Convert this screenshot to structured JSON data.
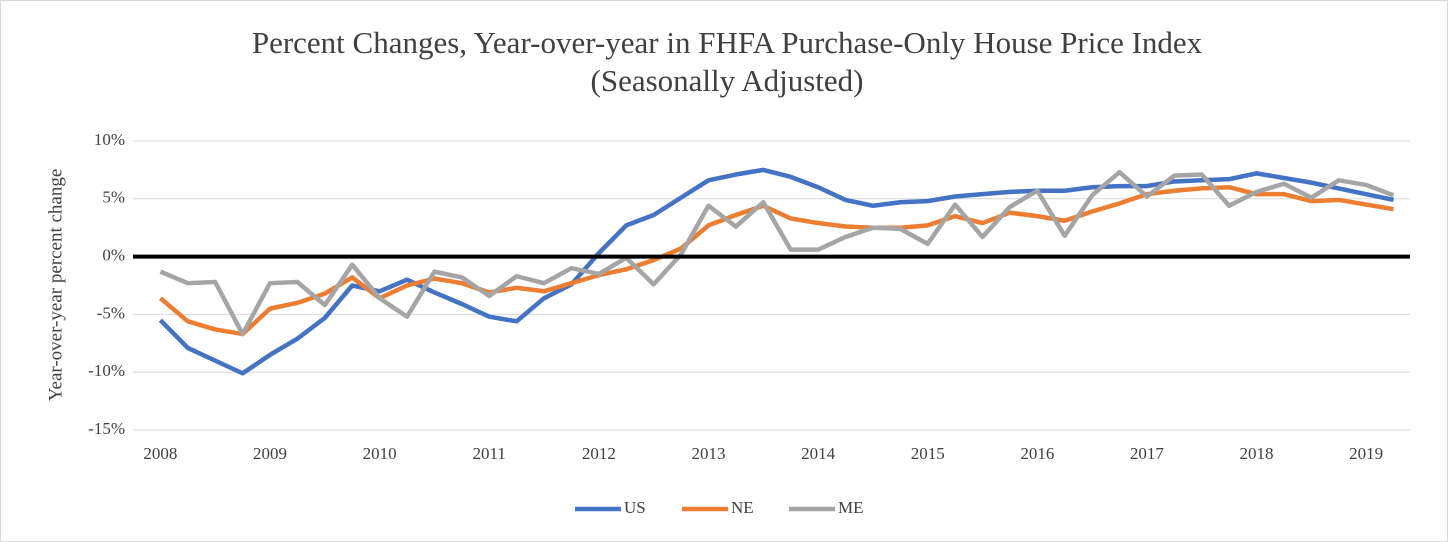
{
  "chart_data": {
    "type": "line",
    "title": "Percent Changes, Year-over-year  in FHFA Purchase-Only House Price Index",
    "subtitle": "(Seasonally Adjusted)",
    "y_label": "Year-over-year percent change",
    "x": [
      2008,
      2008.25,
      2008.5,
      2008.75,
      2009,
      2009.25,
      2009.5,
      2009.75,
      2010,
      2010.25,
      2010.5,
      2010.75,
      2011,
      2011.25,
      2011.5,
      2011.75,
      2012,
      2012.25,
      2012.5,
      2012.75,
      2013,
      2013.25,
      2013.5,
      2013.75,
      2014,
      2014.25,
      2014.5,
      2014.75,
      2015,
      2015.25,
      2015.5,
      2015.75,
      2016,
      2016.25,
      2016.5,
      2016.75,
      2017,
      2017.25,
      2017.5,
      2017.75,
      2018,
      2018.25,
      2018.5,
      2018.75,
      2019,
      2019.25
    ],
    "series": [
      {
        "name": "US",
        "color": "#4472c4",
        "values": [
          -5.5,
          -7.9,
          -9.0,
          -10.1,
          -8.5,
          -7.1,
          -5.3,
          -2.5,
          -3.0,
          -2.0,
          -3.1,
          -4.1,
          -5.2,
          -5.6,
          -3.6,
          -2.4,
          0.3,
          2.7,
          3.6,
          5.1,
          6.6,
          7.1,
          7.5,
          6.9,
          6.0,
          4.9,
          4.4,
          4.7,
          4.8,
          5.2,
          5.4,
          5.6,
          5.7,
          5.7,
          6.0,
          6.1,
          6.1,
          6.5,
          6.6,
          6.7,
          7.2,
          6.8,
          6.4,
          5.9,
          5.4,
          4.9
        ]
      },
      {
        "name": "NE",
        "color": "#ed7d31",
        "values": [
          -3.6,
          -5.6,
          -6.3,
          -6.7,
          -4.5,
          -4.0,
          -3.2,
          -1.8,
          -3.6,
          -2.5,
          -1.9,
          -2.3,
          -3.1,
          -2.7,
          -3.0,
          -2.3,
          -1.6,
          -1.1,
          -0.3,
          0.7,
          2.7,
          3.6,
          4.4,
          3.3,
          2.9,
          2.6,
          2.5,
          2.5,
          2.7,
          3.5,
          2.9,
          3.8,
          3.5,
          3.1,
          3.9,
          4.6,
          5.4,
          5.7,
          5.9,
          6.0,
          5.4,
          5.4,
          4.8,
          4.9,
          4.5,
          4.1
        ]
      },
      {
        "name": "ME",
        "color": "#a5a5a5",
        "values": [
          -1.3,
          -2.3,
          -2.2,
          -6.7,
          -2.3,
          -2.2,
          -4.2,
          -0.7,
          -3.6,
          -5.2,
          -1.3,
          -1.8,
          -3.4,
          -1.7,
          -2.3,
          -1.0,
          -1.5,
          -0.1,
          -2.4,
          0.2,
          4.4,
          2.6,
          4.7,
          0.6,
          0.6,
          1.7,
          2.5,
          2.4,
          1.1,
          4.5,
          1.7,
          4.3,
          5.7,
          1.8,
          5.3,
          7.3,
          5.2,
          7.0,
          7.1,
          4.4,
          5.6,
          6.3,
          5.1,
          6.6,
          6.2,
          5.3
        ]
      }
    ],
    "xlim": [
      2007.75,
      2019.4
    ],
    "xticks": [
      2008,
      2009,
      2010,
      2011,
      2012,
      2013,
      2014,
      2015,
      2016,
      2017,
      2018,
      2019
    ],
    "ylim": [
      -15,
      10
    ],
    "yticks": [
      {
        "value": -15,
        "label": "-15%"
      },
      {
        "value": -10,
        "label": "-10%"
      },
      {
        "value": -5,
        "label": "-5%"
      },
      {
        "value": 0,
        "label": "0%"
      },
      {
        "value": 5,
        "label": "5%"
      },
      {
        "value": 10,
        "label": "10%"
      }
    ],
    "grid": true,
    "legend": "bottom"
  }
}
